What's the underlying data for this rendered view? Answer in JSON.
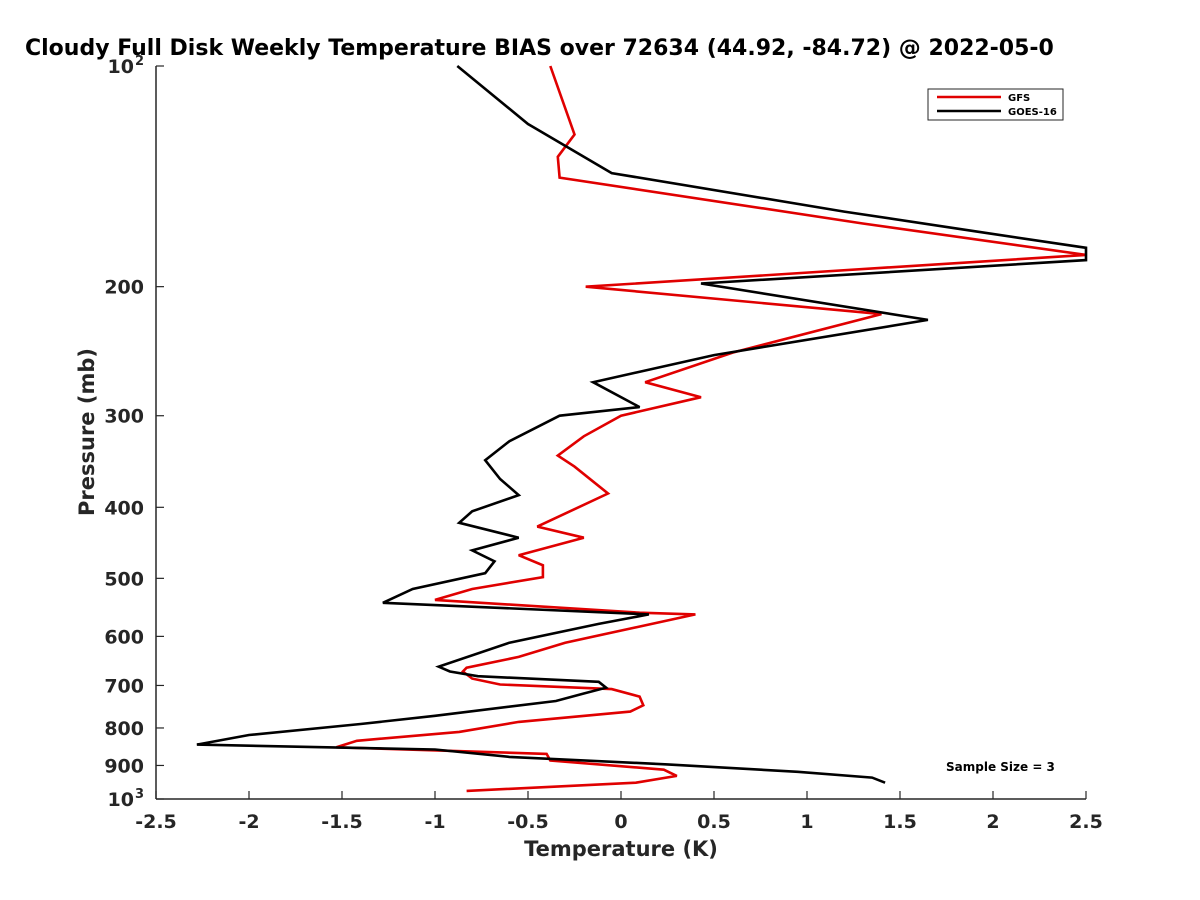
{
  "chart_data": {
    "type": "line",
    "title": "Cloudy Full Disk Weekly Temperature BIAS over 72634 (44.92, -84.72) @ 2022-05-0",
    "xlabel": "Temperature (K)",
    "ylabel": "Pressure (mb)",
    "xlim": [
      -2.5,
      2.5
    ],
    "ylim": [
      100,
      1000
    ],
    "y_scale": "log",
    "y_reversed": true,
    "grid": false,
    "legend_position": "top-right",
    "x_ticks": [
      {
        "value": -2.5,
        "label": "-2.5"
      },
      {
        "value": -2,
        "label": "-2"
      },
      {
        "value": -1.5,
        "label": "-1.5"
      },
      {
        "value": -1,
        "label": "-1"
      },
      {
        "value": -0.5,
        "label": "-0.5"
      },
      {
        "value": 0,
        "label": "0"
      },
      {
        "value": 0.5,
        "label": "0.5"
      },
      {
        "value": 1,
        "label": "1"
      },
      {
        "value": 1.5,
        "label": "1.5"
      },
      {
        "value": 2,
        "label": "2"
      },
      {
        "value": 2.5,
        "label": "2.5"
      }
    ],
    "y_ticks": [
      {
        "value": 100,
        "label": "10",
        "exp": "2"
      },
      {
        "value": 200,
        "label": "200"
      },
      {
        "value": 300,
        "label": "300"
      },
      {
        "value": 400,
        "label": "400"
      },
      {
        "value": 500,
        "label": "500"
      },
      {
        "value": 600,
        "label": "600"
      },
      {
        "value": 700,
        "label": "700"
      },
      {
        "value": 800,
        "label": "800"
      },
      {
        "value": 900,
        "label": "900"
      },
      {
        "value": 1000,
        "label": "10",
        "exp": "3"
      }
    ],
    "series": [
      {
        "name": "GFS",
        "color": "#e00000",
        "points": [
          [
            -0.38,
            100
          ],
          [
            -0.25,
            124
          ],
          [
            -0.34,
            133
          ],
          [
            -0.33,
            142
          ],
          [
            1.3,
            164
          ],
          [
            2.5,
            181
          ],
          [
            -0.19,
            200
          ],
          [
            1.4,
            218
          ],
          [
            0.6,
            246
          ],
          [
            0.13,
            270
          ],
          [
            0.43,
            283
          ],
          [
            0.0,
            300
          ],
          [
            -0.2,
            320
          ],
          [
            -0.34,
            340
          ],
          [
            -0.25,
            352
          ],
          [
            -0.07,
            383
          ],
          [
            -0.45,
            425
          ],
          [
            -0.2,
            440
          ],
          [
            -0.55,
            465
          ],
          [
            -0.42,
            480
          ],
          [
            -0.42,
            498
          ],
          [
            -0.8,
            517
          ],
          [
            -1.0,
            535
          ],
          [
            0.1,
            557
          ],
          [
            0.4,
            560
          ],
          [
            -0.3,
            612
          ],
          [
            -0.55,
            640
          ],
          [
            -0.83,
            662
          ],
          [
            -0.85,
            670
          ],
          [
            -0.8,
            685
          ],
          [
            -0.65,
            698
          ],
          [
            -0.05,
            708
          ],
          [
            0.1,
            725
          ],
          [
            0.12,
            745
          ],
          [
            0.05,
            760
          ],
          [
            -0.55,
            785
          ],
          [
            -0.87,
            810
          ],
          [
            -1.42,
            833
          ],
          [
            -1.53,
            850
          ],
          [
            -0.4,
            868
          ],
          [
            -0.38,
            886
          ],
          [
            0.23,
            912
          ],
          [
            0.3,
            930
          ],
          [
            0.08,
            950
          ],
          [
            -0.83,
            975
          ]
        ]
      },
      {
        "name": "GOES-16",
        "color": "#000000",
        "points": [
          [
            -0.88,
            100
          ],
          [
            -0.5,
            120
          ],
          [
            -0.05,
            140
          ],
          [
            1.2,
            158
          ],
          [
            1.9,
            168
          ],
          [
            2.5,
            177
          ],
          [
            2.5,
            184
          ],
          [
            0.43,
            198
          ],
          [
            1.65,
            222
          ],
          [
            0.5,
            248
          ],
          [
            -0.15,
            270
          ],
          [
            0.1,
            292
          ],
          [
            -0.33,
            300
          ],
          [
            -0.6,
            325
          ],
          [
            -0.73,
            345
          ],
          [
            -0.65,
            366
          ],
          [
            -0.55,
            385
          ],
          [
            -0.8,
            405
          ],
          [
            -0.87,
            420
          ],
          [
            -0.55,
            440
          ],
          [
            -0.8,
            458
          ],
          [
            -0.68,
            474
          ],
          [
            -0.73,
            492
          ],
          [
            -1.12,
            517
          ],
          [
            -1.28,
            540
          ],
          [
            0.15,
            560
          ],
          [
            -0.12,
            577
          ],
          [
            -0.6,
            612
          ],
          [
            -0.98,
            660
          ],
          [
            -0.92,
            670
          ],
          [
            -0.77,
            680
          ],
          [
            -0.12,
            692
          ],
          [
            -0.08,
            705
          ],
          [
            -0.2,
            718
          ],
          [
            -0.35,
            735
          ],
          [
            -1.0,
            770
          ],
          [
            -1.4,
            790
          ],
          [
            -2.0,
            818
          ],
          [
            -2.28,
            843
          ],
          [
            -1.0,
            856
          ],
          [
            -0.6,
            876
          ],
          [
            0.25,
            897
          ],
          [
            0.95,
            918
          ],
          [
            1.35,
            935
          ],
          [
            1.42,
            950
          ]
        ]
      }
    ],
    "annotations": [
      {
        "text": "Sample Size = 3",
        "position": "bottom-right"
      }
    ]
  }
}
